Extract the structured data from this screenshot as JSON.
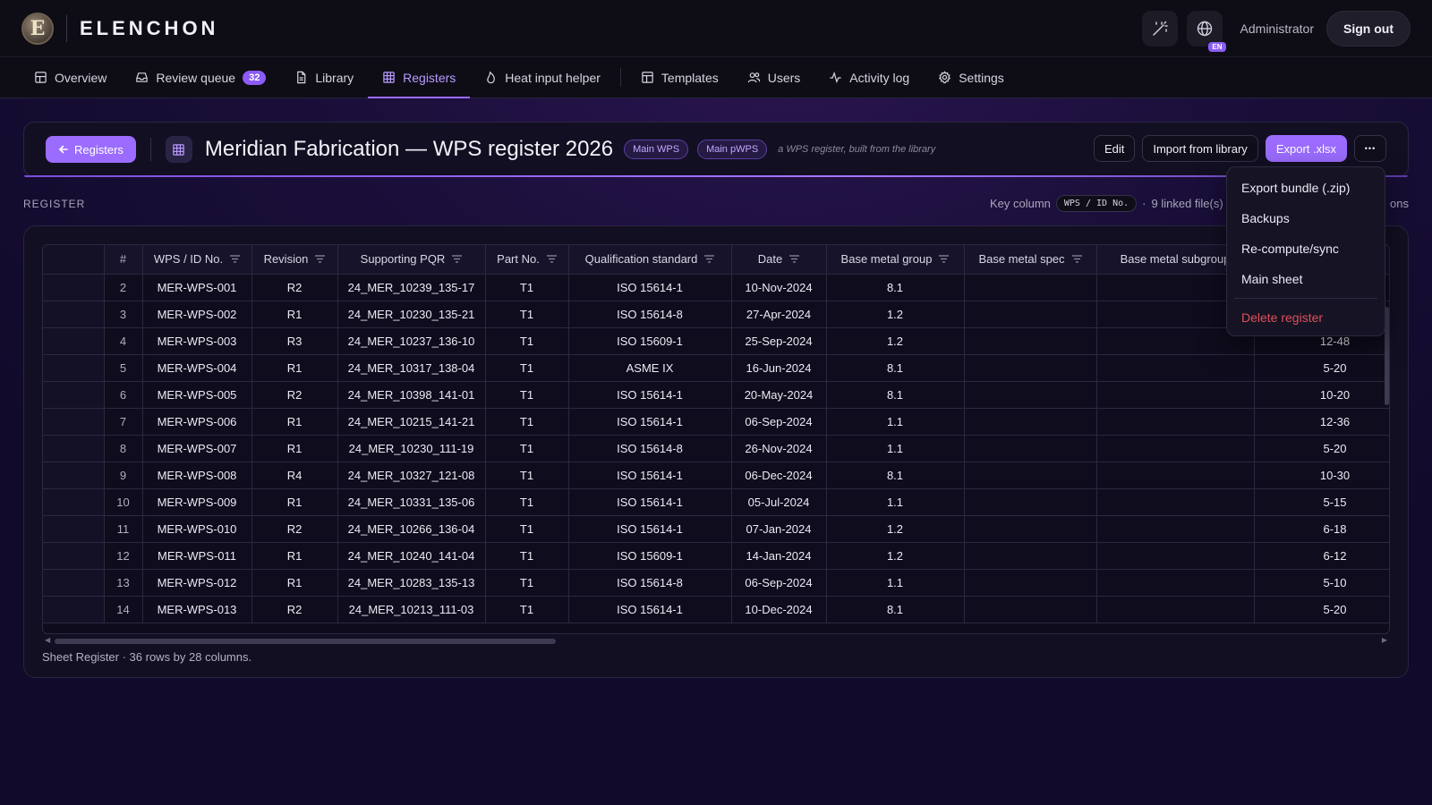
{
  "app": {
    "brand": "ELENCHON",
    "logo_letter": "E"
  },
  "header": {
    "user": "Administrator",
    "lang": "EN",
    "sign_out": "Sign out"
  },
  "nav": {
    "items": [
      {
        "label": "Overview",
        "icon": "overview-icon"
      },
      {
        "label": "Review queue",
        "icon": "inbox-icon",
        "badge": "32"
      },
      {
        "label": "Library",
        "icon": "file-icon"
      },
      {
        "label": "Registers",
        "icon": "table-icon",
        "active": true
      },
      {
        "label": "Heat input helper",
        "icon": "flame-icon"
      },
      {
        "label": "Templates",
        "icon": "template-icon"
      },
      {
        "label": "Users",
        "icon": "users-icon"
      },
      {
        "label": "Activity log",
        "icon": "activity-icon"
      },
      {
        "label": "Settings",
        "icon": "gear-icon"
      }
    ]
  },
  "register": {
    "back_label": "Registers",
    "title": "Meridian Fabrication — WPS register 2026",
    "pills": [
      "Main WPS",
      "Main pWPS"
    ],
    "subtitle": "a WPS register, built from the library",
    "actions": {
      "edit": "Edit",
      "import": "Import from library",
      "export": "Export .xlsx",
      "more": "•••"
    }
  },
  "section": {
    "label": "REGISTER",
    "key_column_label": "Key column",
    "key_column_value": "WPS / ID No.",
    "linked_files": "9 linked file(s)",
    "trailing": "ons"
  },
  "table": {
    "columns": [
      "",
      "#",
      "WPS / ID No.",
      "Revision",
      "Supporting PQR",
      "Part No.",
      "Qualification standard",
      "Date",
      "Base metal group",
      "Base metal spec",
      "Base metal subgroup",
      ""
    ],
    "filterable": [
      false,
      false,
      true,
      true,
      true,
      true,
      true,
      true,
      true,
      true,
      false,
      false
    ],
    "rows": [
      [
        "2",
        "MER-WPS-001",
        "R2",
        "24_MER_10239_135-17",
        "T1",
        "ISO 15614-1",
        "10-Nov-2024",
        "8.1",
        "",
        "",
        ""
      ],
      [
        "3",
        "MER-WPS-002",
        "R1",
        "24_MER_10230_135-21",
        "T1",
        "ISO 15614-8",
        "27-Apr-2024",
        "1.2",
        "",
        "",
        ""
      ],
      [
        "4",
        "MER-WPS-003",
        "R3",
        "24_MER_10237_136-10",
        "T1",
        "ISO 15609-1",
        "25-Sep-2024",
        "1.2",
        "",
        "",
        "12-48"
      ],
      [
        "5",
        "MER-WPS-004",
        "R1",
        "24_MER_10317_138-04",
        "T1",
        "ASME IX",
        "16-Jun-2024",
        "8.1",
        "",
        "",
        "5-20"
      ],
      [
        "6",
        "MER-WPS-005",
        "R2",
        "24_MER_10398_141-01",
        "T1",
        "ISO 15614-1",
        "20-May-2024",
        "8.1",
        "",
        "",
        "10-20"
      ],
      [
        "7",
        "MER-WPS-006",
        "R1",
        "24_MER_10215_141-21",
        "T1",
        "ISO 15614-1",
        "06-Sep-2024",
        "1.1",
        "",
        "",
        "12-36"
      ],
      [
        "8",
        "MER-WPS-007",
        "R1",
        "24_MER_10230_111-19",
        "T1",
        "ISO 15614-8",
        "26-Nov-2024",
        "1.1",
        "",
        "",
        "5-20"
      ],
      [
        "9",
        "MER-WPS-008",
        "R4",
        "24_MER_10327_121-08",
        "T1",
        "ISO 15614-1",
        "06-Dec-2024",
        "8.1",
        "",
        "",
        "10-30"
      ],
      [
        "10",
        "MER-WPS-009",
        "R1",
        "24_MER_10331_135-06",
        "T1",
        "ISO 15614-1",
        "05-Jul-2024",
        "1.1",
        "",
        "",
        "5-15"
      ],
      [
        "11",
        "MER-WPS-010",
        "R2",
        "24_MER_10266_136-04",
        "T1",
        "ISO 15614-1",
        "07-Jan-2024",
        "1.2",
        "",
        "",
        "6-18"
      ],
      [
        "12",
        "MER-WPS-011",
        "R1",
        "24_MER_10240_141-04",
        "T1",
        "ISO 15609-1",
        "14-Jan-2024",
        "1.2",
        "",
        "",
        "6-12"
      ],
      [
        "13",
        "MER-WPS-012",
        "R1",
        "24_MER_10283_135-13",
        "T1",
        "ISO 15614-8",
        "06-Sep-2024",
        "1.1",
        "",
        "",
        "5-10"
      ],
      [
        "14",
        "MER-WPS-013",
        "R2",
        "24_MER_10213_111-03",
        "T1",
        "ISO 15614-1",
        "10-Dec-2024",
        "8.1",
        "",
        "",
        "5-20"
      ]
    ],
    "sheet_info": "Sheet Register · 36 rows by 28 columns."
  },
  "dropdown": {
    "items": [
      "Export bundle (.zip)",
      "Backups",
      "Re-compute/sync",
      "Main sheet"
    ],
    "danger": "Delete register"
  },
  "colors": {
    "accent": "#9b6cff",
    "danger": "#e0505a",
    "background": "#1a0f3a"
  }
}
